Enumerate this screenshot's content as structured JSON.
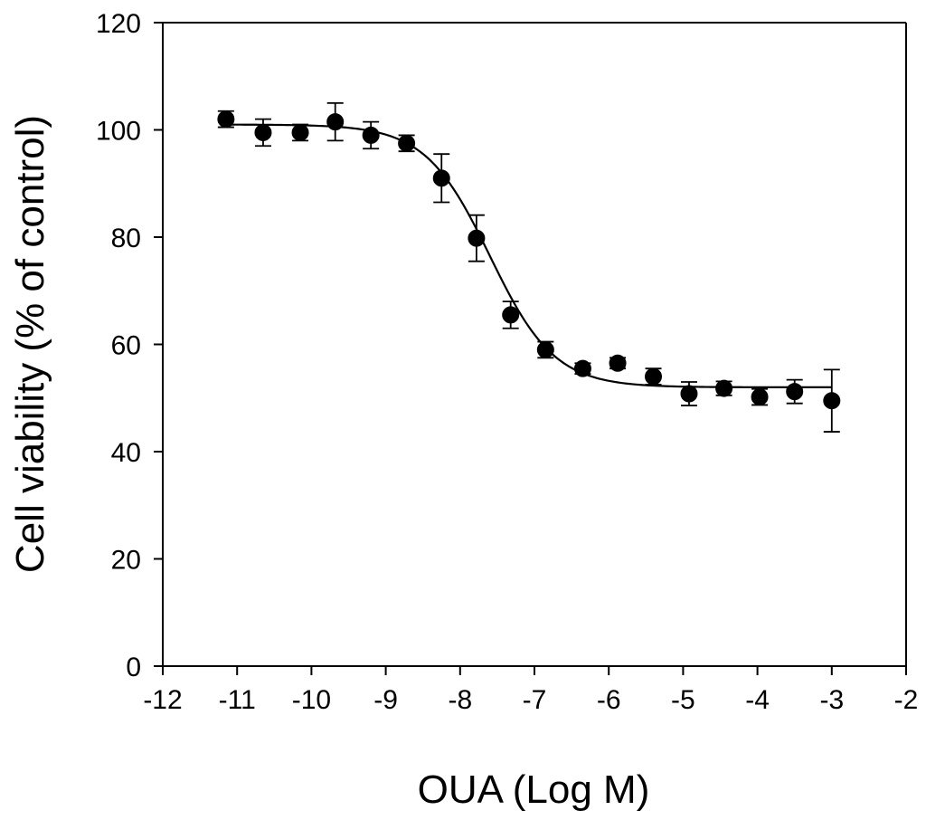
{
  "chart_data": {
    "type": "scatter",
    "title": "",
    "xlabel": "OUA (Log M)",
    "ylabel": "Cell viability (% of control)",
    "xlim": [
      -12,
      -2
    ],
    "ylim": [
      0,
      120
    ],
    "x_ticks": [
      -12,
      -11,
      -10,
      -9,
      -8,
      -7,
      -6,
      -5,
      -4,
      -3,
      -2
    ],
    "y_ticks": [
      0,
      20,
      40,
      60,
      80,
      100,
      120
    ],
    "x_tick_labels": [
      "-12",
      "-11",
      "-10",
      "-9",
      "-8",
      "-7",
      "-6",
      "-5",
      "-4",
      "-3",
      "-2"
    ],
    "y_tick_labels": [
      "0",
      "20",
      "40",
      "60",
      "80",
      "100",
      "120"
    ],
    "grid": false,
    "series": [
      {
        "name": "OUA",
        "marker": "circle",
        "color": "#000000",
        "x": [
          -11.15,
          -10.65,
          -10.15,
          -9.68,
          -9.2,
          -8.72,
          -8.25,
          -7.78,
          -7.32,
          -6.85,
          -6.35,
          -5.88,
          -5.4,
          -4.92,
          -4.45,
          -3.97,
          -3.5,
          -3.0
        ],
        "y": [
          102.0,
          99.5,
          99.5,
          101.5,
          99.0,
          97.5,
          91.0,
          79.8,
          65.5,
          59.0,
          55.5,
          56.5,
          54.0,
          50.8,
          51.8,
          50.2,
          51.2,
          49.5
        ],
        "error": [
          1.5,
          2.5,
          1.5,
          3.5,
          2.5,
          1.5,
          4.5,
          4.3,
          2.5,
          1.5,
          1.0,
          1.0,
          1.5,
          2.2,
          1.3,
          1.5,
          2.2,
          5.8
        ]
      }
    ],
    "fit": {
      "model": "sigmoid",
      "top": 101.0,
      "bottom": 52.0,
      "logEC50": -7.6,
      "hill": 1.0,
      "x_range": [
        -11.15,
        -3.0
      ]
    }
  }
}
